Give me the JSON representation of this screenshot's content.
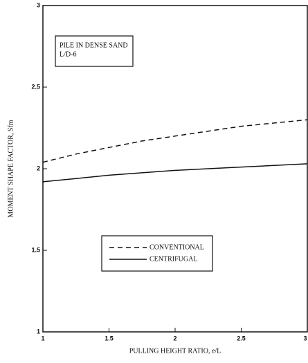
{
  "chart_data": {
    "type": "line",
    "annotation": [
      "PILE IN DENSE SAND",
      "L/D-6"
    ],
    "xlabel": "PULLING HEIGHT RATIO, e/L",
    "ylabel": "MOMENT SHAPE FACTOR, Sfm",
    "x": [
      1,
      1.25,
      1.5,
      1.75,
      2,
      2.25,
      2.5,
      2.75,
      3
    ],
    "series": [
      {
        "name": "CONVENTIONAL",
        "color": "#111111",
        "dash": true,
        "values": [
          2.04,
          2.09,
          2.13,
          2.17,
          2.2,
          2.23,
          2.26,
          2.28,
          2.3
        ]
      },
      {
        "name": "CENTRIFUGAL",
        "color": "#111111",
        "dash": false,
        "values": [
          1.92,
          1.94,
          1.96,
          1.975,
          1.99,
          2.0,
          2.01,
          2.02,
          2.03
        ]
      }
    ],
    "xlim": [
      1,
      3
    ],
    "xticks": [
      1,
      1.5,
      2,
      2.5,
      3
    ],
    "ylim": [
      1,
      3
    ],
    "yticks": [
      1,
      1.5,
      2,
      2.5,
      3
    ],
    "grid": false
  }
}
